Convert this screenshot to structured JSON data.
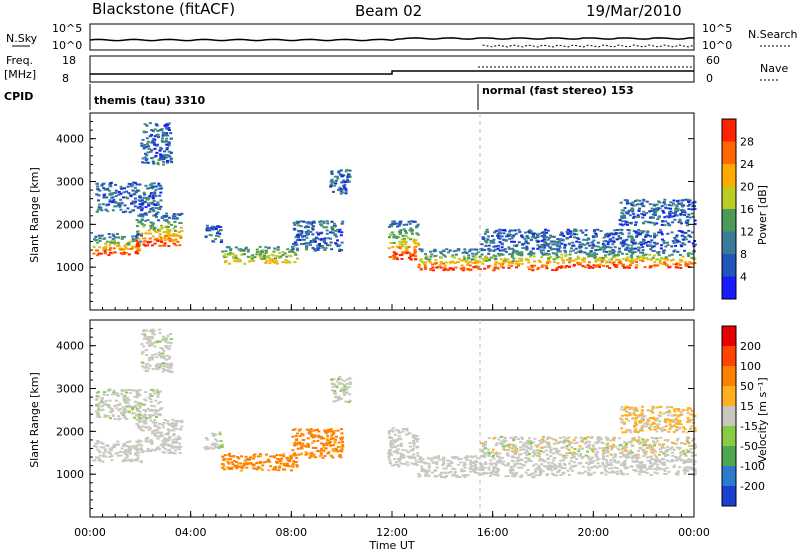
{
  "header": {
    "station": "Blackstone (fitACF)",
    "beam": "Beam 02",
    "date": "19/Mar/2010"
  },
  "status_panels": {
    "nsky_label": "N.Sky",
    "nsearch_label": "N.Search",
    "freq_label_line1": "Freq.",
    "freq_label_line2": "[MHz]",
    "nave_label": "Nave",
    "cpid_label": "CPID",
    "left_top_ticks": [
      "10^5",
      "10^0"
    ],
    "right_top_ticks": [
      "10^5",
      "10^0"
    ],
    "left_freq_ticks": [
      "18",
      "8"
    ],
    "right_nave_ticks": [
      "60",
      "0"
    ],
    "cpid_segments": [
      {
        "label": "themis (tau) 3310",
        "start_hour": 0
      },
      {
        "label": "normal (fast stereo) 153",
        "start_hour": 15.4
      }
    ]
  },
  "chart_data": [
    {
      "type": "heatmap",
      "name": "power",
      "ylabel": "Slant Range [km]",
      "xlabel": "Time UT",
      "xlim_hours": [
        0,
        24
      ],
      "ylim_km": [
        0,
        4600
      ],
      "y_ticks": [
        1000,
        2000,
        3000,
        4000
      ],
      "x_tick_labels": [
        "00:00",
        "04:00",
        "08:00",
        "12:00",
        "16:00",
        "20:00",
        "00:00"
      ],
      "colorbar": {
        "label": "Power [dB]",
        "ticks": [
          "4",
          "8",
          "12",
          "16",
          "20",
          "24",
          "28"
        ],
        "colors": [
          "#1a1aff",
          "#2255bb",
          "#3a7a9a",
          "#4a9a5a",
          "#bbcc22",
          "#ffaa00",
          "#ff6600",
          "#ff2200"
        ]
      }
    },
    {
      "type": "heatmap",
      "name": "velocity",
      "ylabel": "Slant Range [km]",
      "xlabel": "Time UT",
      "xlim_hours": [
        0,
        24
      ],
      "ylim_km": [
        0,
        4600
      ],
      "y_ticks": [
        1000,
        2000,
        3000,
        4000
      ],
      "x_tick_labels": [
        "00:00",
        "04:00",
        "08:00",
        "12:00",
        "16:00",
        "20:00",
        "00:00"
      ],
      "colorbar": {
        "label": "Velocity [m s⁻¹]",
        "ticks": [
          "200",
          "100",
          "50",
          "15",
          "-15",
          "-50",
          "-100",
          "-200"
        ],
        "colors": [
          "#1a3fd1",
          "#2a7ad0",
          "#4fa84f",
          "#88cc44",
          "#c8c8c0",
          "#ffb020",
          "#ff8000",
          "#ff4400",
          "#e80000"
        ]
      }
    }
  ],
  "echo_regions": [
    {
      "t0": 0.1,
      "t1": 2.0,
      "r0": 1300,
      "r1": 1800,
      "style": "core"
    },
    {
      "t0": 1.8,
      "t1": 3.6,
      "r0": 1500,
      "r1": 2300,
      "style": "core"
    },
    {
      "t0": 0.2,
      "t1": 2.8,
      "r0": 2300,
      "r1": 3000,
      "style": "edge"
    },
    {
      "t0": 2.0,
      "t1": 3.2,
      "r0": 3400,
      "r1": 4400,
      "style": "edge"
    },
    {
      "t0": 4.5,
      "t1": 5.2,
      "r0": 1600,
      "r1": 2000,
      "style": "edge"
    },
    {
      "t0": 5.2,
      "t1": 8.2,
      "r0": 1100,
      "r1": 1500,
      "style": "mid"
    },
    {
      "t0": 8.0,
      "t1": 10.0,
      "r0": 1400,
      "r1": 2100,
      "style": "edge"
    },
    {
      "t0": 9.5,
      "t1": 10.3,
      "r0": 2700,
      "r1": 3300,
      "style": "edge"
    },
    {
      "t0": 11.8,
      "t1": 13.0,
      "r0": 1200,
      "r1": 2100,
      "style": "core"
    },
    {
      "t0": 13.0,
      "t1": 18.5,
      "r0": 950,
      "r1": 1450,
      "style": "core"
    },
    {
      "t0": 18.5,
      "t1": 24.0,
      "r0": 1000,
      "r1": 1450,
      "style": "core"
    },
    {
      "t0": 15.5,
      "t1": 24.0,
      "r0": 1450,
      "r1": 1900,
      "style": "edge"
    },
    {
      "t0": 21.0,
      "t1": 24.0,
      "r0": 2000,
      "r1": 2600,
      "style": "edge"
    }
  ]
}
